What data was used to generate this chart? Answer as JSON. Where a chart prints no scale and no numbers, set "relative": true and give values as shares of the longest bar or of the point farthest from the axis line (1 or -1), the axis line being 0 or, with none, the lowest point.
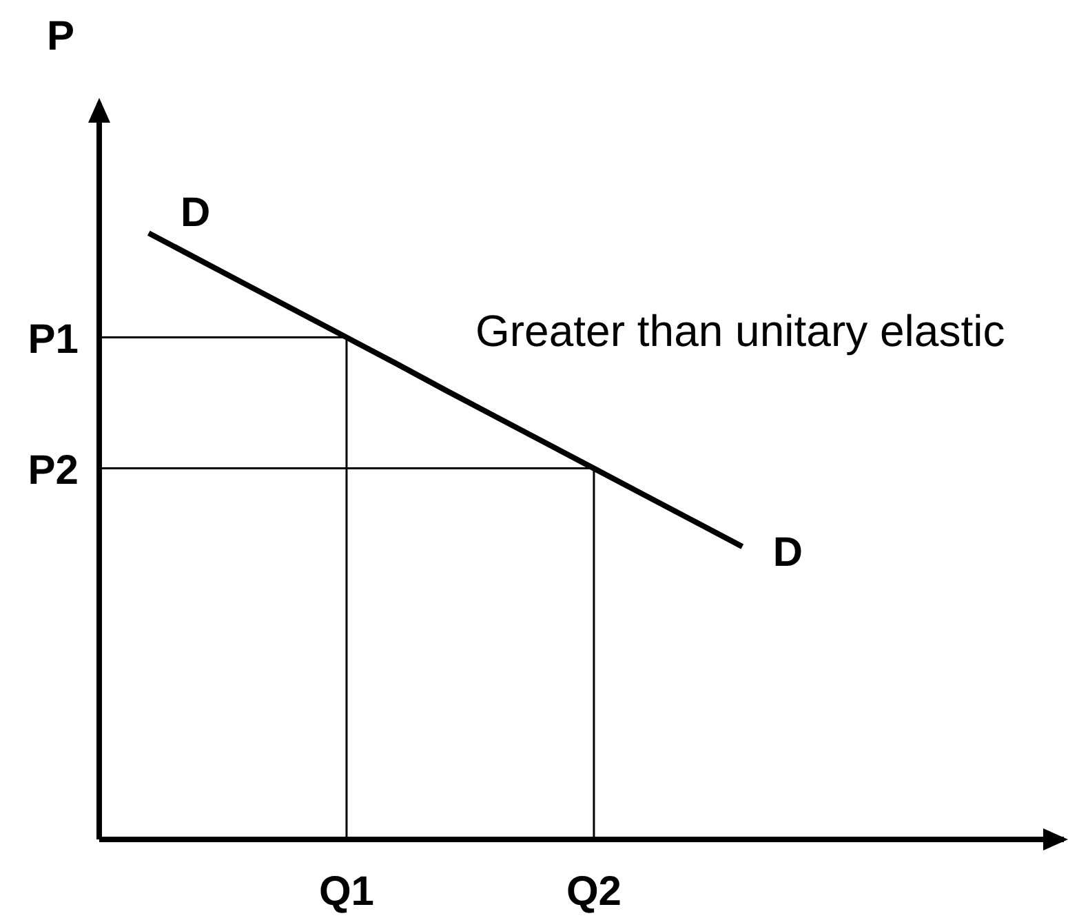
{
  "chart_data": {
    "type": "line",
    "ylabel": "P",
    "relative": true,
    "categories": [
      null,
      null,
      null,
      null,
      null,
      "Q1",
      null,
      null,
      null,
      null,
      "Q2",
      null,
      null,
      null,
      null,
      null,
      null,
      null,
      null,
      null
    ],
    "annotations": [
      "Greater than unitary elastic"
    ],
    "marker": "none",
    "series": [
      {
        "name": "D",
        "color": "#000000",
        "values": [
          null,
          1,
          0.957,
          0.914,
          0.871,
          0.828,
          0.785,
          0.741,
          0.698,
          0.655,
          0.612,
          0.569,
          0.526,
          0.483,
          null,
          null,
          null,
          null,
          null,
          null
        ]
      }
    ],
    "ref_lines": [
      {
        "axis": "y",
        "value": 0.828,
        "label": "P1",
        "color": "#000000"
      },
      {
        "axis": "y",
        "value": 0.612,
        "label": "P2",
        "color": "#000000"
      },
      {
        "axis": "x",
        "value": "Q1",
        "color": "#000000"
      },
      {
        "axis": "x",
        "value": "Q2",
        "color": "#000000"
      }
    ]
  }
}
